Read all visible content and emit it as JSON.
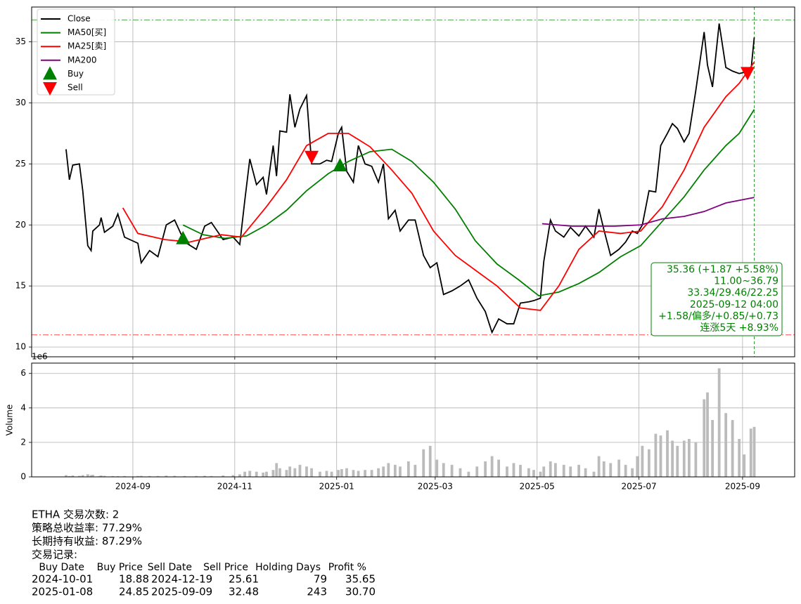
{
  "chart_data": [
    {
      "type": "line",
      "grid": true,
      "legend": "upper left",
      "xlim": [
        1.4,
        458.2
      ],
      "ylim": [
        9.2,
        37.85
      ],
      "xticks": [
        62,
        123,
        184,
        243,
        304,
        365,
        427
      ],
      "yticks": [
        10,
        15,
        20,
        25,
        30,
        35
      ],
      "series": [
        {
          "name": "Close",
          "color": "black",
          "x": [
            22,
            24,
            26,
            30,
            32,
            35,
            37,
            38,
            42,
            43,
            45,
            50,
            53,
            57,
            65,
            67,
            72,
            77,
            82,
            87,
            93,
            100,
            105,
            109,
            116,
            122,
            126,
            129,
            132,
            136,
            140,
            142,
            146,
            148,
            150,
            154,
            156,
            159,
            162,
            166,
            169,
            174,
            178,
            181,
            185,
            187,
            190,
            194,
            197,
            201,
            205,
            209,
            212,
            215,
            219,
            222,
            227,
            231,
            236,
            240,
            244,
            248,
            253,
            258,
            263,
            268,
            273,
            277,
            281,
            286,
            290,
            294,
            299,
            302,
            306,
            308,
            312,
            315,
            320,
            324,
            329,
            333,
            338,
            341,
            344,
            348,
            353,
            357,
            361,
            364,
            367,
            371,
            375,
            378,
            382,
            385,
            388,
            392,
            395,
            399,
            404,
            406,
            409,
            413,
            417,
            421,
            425,
            428,
            432,
            434
          ],
          "values": [
            26.2,
            23.7,
            24.9,
            25.0,
            22.8,
            18.3,
            17.9,
            19.5,
            20.0,
            20.6,
            19.4,
            19.9,
            20.9,
            19.0,
            18.5,
            16.9,
            17.9,
            17.4,
            20.0,
            20.4,
            18.6,
            18.0,
            19.9,
            20.2,
            18.8,
            19.0,
            18.4,
            22.0,
            25.4,
            23.3,
            23.9,
            22.5,
            26.5,
            24.0,
            27.7,
            27.6,
            30.7,
            28.0,
            29.5,
            30.6,
            25.0,
            25.0,
            25.3,
            25.2,
            27.5,
            28.0,
            24.4,
            23.5,
            26.5,
            25.0,
            24.8,
            23.5,
            25.0,
            20.5,
            21.2,
            19.5,
            20.4,
            20.4,
            17.5,
            16.5,
            16.9,
            14.3,
            14.6,
            15.0,
            15.5,
            14.0,
            12.9,
            11.2,
            12.3,
            11.9,
            11.9,
            13.6,
            13.7,
            13.8,
            14.0,
            17.0,
            20.4,
            19.5,
            19.0,
            19.8,
            19.1,
            19.9,
            19.0,
            21.3,
            19.6,
            17.5,
            18.0,
            18.6,
            19.5,
            19.3,
            20.0,
            22.8,
            22.7,
            26.5,
            27.5,
            28.3,
            27.9,
            26.8,
            27.5,
            31.0,
            35.8,
            33.1,
            31.3,
            36.5,
            32.9,
            32.6,
            32.4,
            32.5,
            32.6,
            35.36
          ]
        },
        {
          "name": "MA50[买]",
          "color": "green",
          "x": [
            92,
            104,
            117,
            130,
            142,
            154,
            166,
            179,
            191,
            204,
            217,
            229,
            242,
            255,
            267,
            280,
            293,
            305,
            317,
            329,
            341,
            354,
            366,
            379,
            392,
            404,
            417,
            425,
            434
          ],
          "values": [
            20.0,
            19.2,
            18.9,
            19.1,
            20.0,
            21.2,
            22.8,
            24.2,
            25.2,
            26.0,
            26.2,
            25.2,
            23.5,
            21.3,
            18.7,
            16.8,
            15.5,
            14.2,
            14.5,
            15.2,
            16.1,
            17.4,
            18.3,
            20.3,
            22.3,
            24.5,
            26.5,
            27.5,
            29.46
          ]
        },
        {
          "name": "MA25[卖]",
          "color": "red",
          "x": [
            56,
            65,
            81,
            96,
            115,
            127,
            142,
            154,
            166,
            179,
            191,
            204,
            217,
            229,
            242,
            255,
            267,
            280,
            294,
            306,
            317,
            329,
            341,
            354,
            366,
            379,
            392,
            404,
            417,
            425,
            434
          ],
          "values": [
            21.4,
            19.3,
            18.8,
            18.6,
            19.2,
            19.0,
            21.5,
            23.7,
            26.5,
            27.5,
            27.5,
            26.4,
            24.5,
            22.6,
            19.5,
            17.5,
            16.3,
            15.0,
            13.2,
            13.0,
            15.0,
            18.0,
            19.5,
            19.3,
            19.5,
            21.5,
            24.5,
            28.0,
            30.5,
            31.6,
            33.34
          ]
        },
        {
          "name": "MA200",
          "color": "purple",
          "x": [
            307,
            325,
            350,
            366,
            379,
            392,
            404,
            417,
            434
          ],
          "values": [
            20.1,
            19.9,
            19.9,
            20.0,
            20.5,
            20.7,
            21.1,
            21.8,
            22.25
          ]
        },
        {
          "name": "Buy",
          "color": "green",
          "marker": "up",
          "x": [
            92,
            186
          ],
          "values": [
            18.88,
            24.85
          ]
        },
        {
          "name": "Sell",
          "color": "red",
          "marker": "down",
          "x": [
            169,
            430
          ],
          "values": [
            25.61,
            32.48
          ]
        }
      ],
      "hlines": [
        {
          "value": 36.79,
          "color": "green"
        },
        {
          "value": 11.0,
          "color": "red"
        }
      ],
      "vline": {
        "value": 434,
        "color": "green"
      },
      "annotation": [
        "35.36 (+1.87 +5.58%)",
        "11.00~36.79",
        "33.34/29.46/22.25",
        "2025-09-12 04:00",
        "+1.58/偏多/+0.85/+0.73",
        "连涨5天 +8.93%"
      ]
    },
    {
      "type": "bar",
      "grid": true,
      "ylabel": "Volume",
      "offset_text": "1e6",
      "color": "#bbbbbb",
      "xlim": [
        1.4,
        458.2
      ],
      "ylim": [
        0,
        6.6
      ],
      "xticks": [
        {
          "value": 62,
          "label": "2024-09"
        },
        {
          "value": 123,
          "label": "2024-11"
        },
        {
          "value": 184,
          "label": "2025-01"
        },
        {
          "value": 243,
          "label": "2025-03"
        },
        {
          "value": 304,
          "label": "2025-05"
        },
        {
          "value": 365,
          "label": "2025-07"
        },
        {
          "value": 427,
          "label": "2025-09"
        }
      ],
      "yticks": [
        0,
        2,
        4,
        6
      ],
      "x": [
        22,
        24,
        26,
        30,
        32,
        35,
        37,
        38,
        42,
        43,
        45,
        50,
        53,
        57,
        65,
        67,
        72,
        77,
        82,
        87,
        93,
        100,
        105,
        109,
        116,
        122,
        126,
        129,
        132,
        136,
        140,
        142,
        146,
        148,
        150,
        154,
        156,
        159,
        162,
        166,
        169,
        174,
        178,
        181,
        185,
        187,
        190,
        194,
        197,
        201,
        205,
        209,
        212,
        215,
        219,
        222,
        227,
        231,
        236,
        240,
        244,
        248,
        253,
        258,
        263,
        268,
        273,
        277,
        281,
        286,
        290,
        294,
        299,
        302,
        306,
        308,
        312,
        315,
        320,
        324,
        329,
        333,
        338,
        341,
        344,
        348,
        353,
        357,
        361,
        364,
        367,
        371,
        375,
        378,
        382,
        385,
        388,
        392,
        395,
        399,
        404,
        406,
        409,
        413,
        417,
        421,
        425,
        428,
        432,
        434
      ],
      "values": [
        0.1,
        0.05,
        0.08,
        0.06,
        0.1,
        0.15,
        0.1,
        0.12,
        0.05,
        0.08,
        0.06,
        0.05,
        0.04,
        0.05,
        0.05,
        0.06,
        0.05,
        0.05,
        0.07,
        0.06,
        0.05,
        0.05,
        0.06,
        0.05,
        0.08,
        0.1,
        0.15,
        0.3,
        0.35,
        0.3,
        0.25,
        0.3,
        0.4,
        0.8,
        0.5,
        0.4,
        0.6,
        0.5,
        0.7,
        0.6,
        0.5,
        0.3,
        0.35,
        0.3,
        0.4,
        0.45,
        0.5,
        0.4,
        0.35,
        0.4,
        0.4,
        0.5,
        0.6,
        0.8,
        0.7,
        0.6,
        0.9,
        0.7,
        1.6,
        1.8,
        1.0,
        0.8,
        0.7,
        0.5,
        0.3,
        0.6,
        0.9,
        1.2,
        1.0,
        0.6,
        0.8,
        0.7,
        0.5,
        0.4,
        0.3,
        0.6,
        0.9,
        0.8,
        0.7,
        0.6,
        0.7,
        0.5,
        0.3,
        1.2,
        0.9,
        0.8,
        1.0,
        0.7,
        0.5,
        1.2,
        1.8,
        1.6,
        2.5,
        2.4,
        2.7,
        2.1,
        1.8,
        2.1,
        2.2,
        2.0,
        4.5,
        4.9,
        3.3,
        6.3,
        3.7,
        3.3,
        2.2,
        1.3,
        2.8,
        2.9
      ]
    }
  ],
  "summary": {
    "lines": [
      "ETHA 交易次数: 2",
      "策略总收益率: 77.29%",
      "长期持有收益: 87.29%",
      "交易记录:"
    ],
    "table": {
      "headers": [
        "Buy Date",
        "Buy Price",
        "Sell Date",
        "Sell Price",
        "Holding Days",
        "Profit %"
      ],
      "rows": [
        [
          "2024-10-01",
          "18.88",
          "2024-12-19",
          "25.61",
          "79",
          "35.65"
        ],
        [
          "2025-01-08",
          "24.85",
          "2025-09-09",
          "32.48",
          "243",
          "30.70"
        ]
      ]
    }
  }
}
